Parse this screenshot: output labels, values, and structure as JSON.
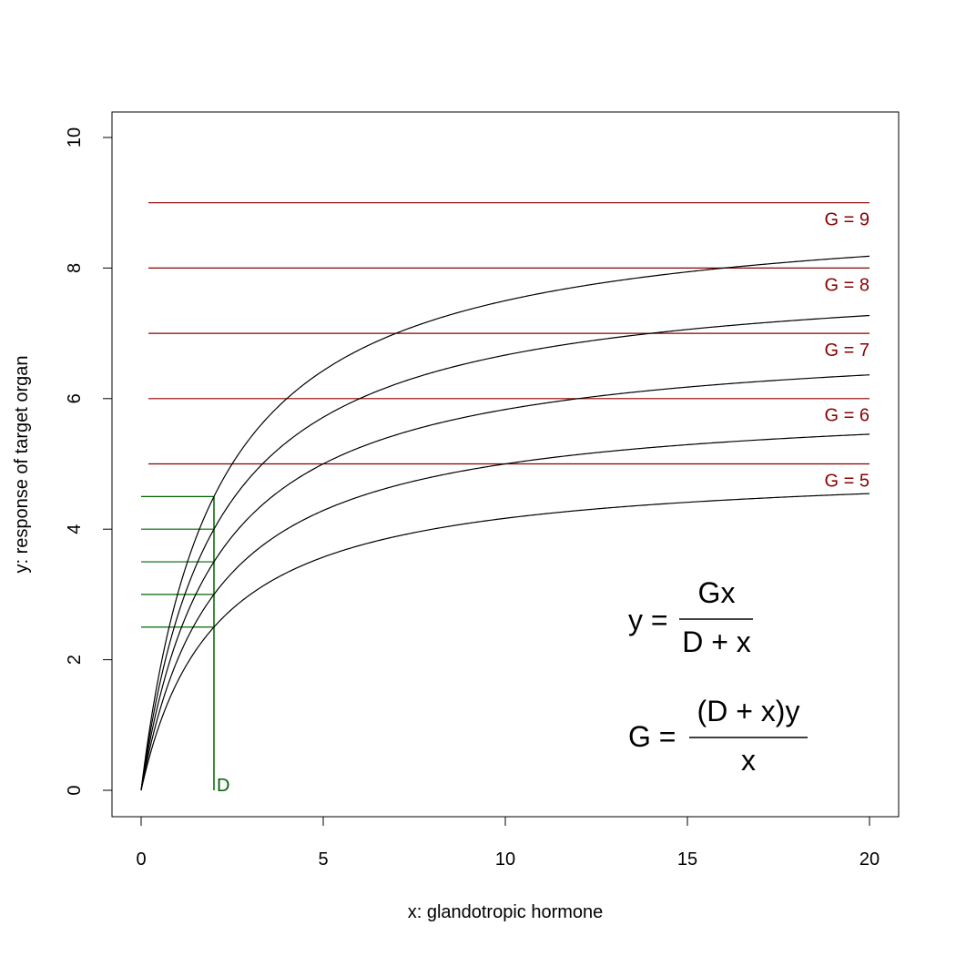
{
  "chart_data": {
    "type": "line",
    "xlabel": "x: glandotropic hormone",
    "ylabel": "y: response of target organ",
    "xlim": [
      0,
      20
    ],
    "ylim": [
      0,
      10
    ],
    "xticks": [
      0,
      5,
      10,
      15,
      20
    ],
    "yticks": [
      0,
      2,
      4,
      6,
      8,
      10
    ],
    "grid": false,
    "D": 2,
    "D_label": "D",
    "curves": [
      {
        "name": "G = 5",
        "G": 5
      },
      {
        "name": "G = 6",
        "G": 6
      },
      {
        "name": "G = 7",
        "G": 7
      },
      {
        "name": "G = 8",
        "G": 8
      },
      {
        "name": "G = 9",
        "G": 9
      }
    ],
    "reference_lines": {
      "y": [
        5,
        6,
        7,
        8,
        9
      ],
      "x_range": [
        0.2,
        20
      ],
      "color": "#8b0000"
    },
    "half_max_lines": {
      "y": [
        2.5,
        3,
        3.5,
        4,
        4.5
      ],
      "x_range": [
        0,
        2
      ],
      "color": "#006400"
    },
    "curve_color": "#000000",
    "formula1": {
      "lhs": "y =",
      "num": "Gx",
      "den": "D + x"
    },
    "formula2": {
      "lhs": "G =",
      "num": "(D + x)y",
      "den": "x"
    }
  }
}
